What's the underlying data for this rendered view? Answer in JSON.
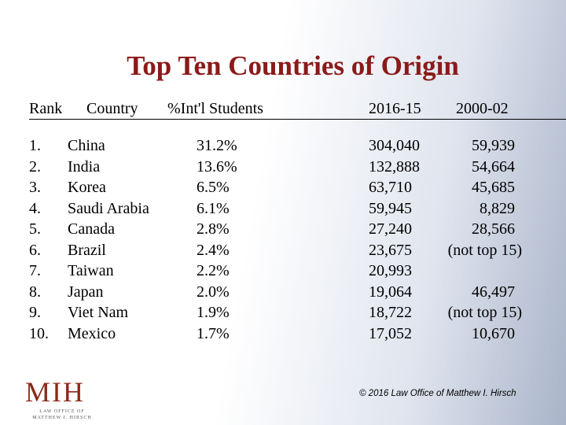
{
  "header": {
    "title": "Top Ten Countries of Origin"
  },
  "table": {
    "columns": [
      "Rank",
      "Country",
      "%Int'l Students",
      "2016-15",
      "2000-02"
    ],
    "rows": [
      [
        "1.",
        "China",
        "31.2%",
        "304,040",
        "59,939"
      ],
      [
        "2.",
        "India",
        "13.6%",
        "132,888",
        "54,664"
      ],
      [
        "3.",
        "Korea",
        "6.5%",
        "63,710",
        "45,685"
      ],
      [
        "4.",
        "Saudi Arabia",
        "6.1%",
        "59,945",
        "8,829"
      ],
      [
        "5.",
        "Canada",
        "2.8%",
        "27,240",
        "28,566"
      ],
      [
        "6.",
        "Brazil",
        "2.4%",
        "23,675",
        "(not top 15)"
      ],
      [
        "7.",
        "Taiwan",
        "2.2%",
        "20,993",
        null
      ],
      [
        "8.",
        "Japan",
        "2.0%",
        "19,064",
        "46,497"
      ],
      [
        "9.",
        "Viet Nam",
        "1.9%",
        "18,722",
        "(not top 15)"
      ],
      [
        "10.",
        "Mexico",
        "1.7%",
        "17,052",
        "10,670"
      ]
    ]
  },
  "footer": {
    "logo": {
      "mark": "MIH",
      "line1": "LAW OFFICE OF",
      "line2": "MATTHEW I. HIRSCH"
    },
    "copyright": "© 2016 Law Office of Matthew I. Hirsch"
  }
}
